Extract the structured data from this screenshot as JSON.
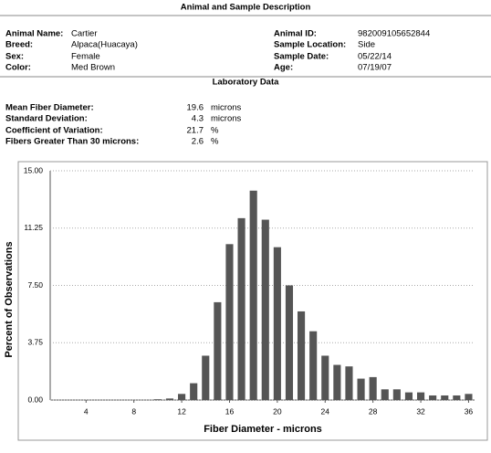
{
  "header": {
    "title": "Animal and Sample Description"
  },
  "animal_left": [
    {
      "label": "Animal Name:",
      "value": "Cartier"
    },
    {
      "label": "Breed:",
      "value": "Alpaca(Huacaya)"
    },
    {
      "label": "Sex:",
      "value": "Female"
    },
    {
      "label": "Color:",
      "value": "Med Brown"
    }
  ],
  "animal_right": [
    {
      "label": "Animal ID:",
      "value": "982009105652844"
    },
    {
      "label": "Sample Location:",
      "value": "Side"
    },
    {
      "label": "Sample Date:",
      "value": "05/22/14"
    },
    {
      "label": "Age:",
      "value": "07/19/07"
    }
  ],
  "lab": {
    "title": "Laboratory Data",
    "rows": [
      {
        "label": "Mean Fiber Diameter:",
        "value": 19.6,
        "unit": "microns"
      },
      {
        "label": "Standard Deviation:",
        "value": 4.3,
        "unit": "microns"
      },
      {
        "label": "Coefficient of Variation:",
        "value": 21.7,
        "unit": "%"
      },
      {
        "label": "Fibers Greater Than 30 microns:",
        "value": 2.6,
        "unit": "%"
      }
    ]
  },
  "chart_data": {
    "type": "bar",
    "xlabel": "Fiber Diameter - microns",
    "ylabel": "Percent of Observations",
    "x": [
      10,
      11,
      12,
      13,
      14,
      15,
      16,
      17,
      18,
      19,
      20,
      21,
      22,
      23,
      24,
      25,
      26,
      27,
      28,
      29,
      30,
      31,
      32,
      33,
      34,
      35,
      36
    ],
    "values": [
      0.05,
      0.1,
      0.4,
      1.1,
      2.9,
      6.4,
      10.2,
      11.9,
      13.7,
      11.8,
      10.0,
      7.5,
      5.8,
      4.5,
      2.9,
      2.3,
      2.2,
      1.4,
      1.5,
      0.7,
      0.7,
      0.5,
      0.5,
      0.3,
      0.3,
      0.3,
      0.4
    ],
    "color": "#555555",
    "xlim": [
      1,
      36.5
    ],
    "ylim": [
      0,
      15
    ],
    "xticks": [
      4,
      8,
      12,
      16,
      20,
      24,
      28,
      32,
      36
    ],
    "yticks": [
      {
        "value": 0,
        "label": "0.00"
      },
      {
        "value": 3.75,
        "label": "3.75"
      },
      {
        "value": 7.5,
        "label": "7.50"
      },
      {
        "value": 11.25,
        "label": "11.25"
      },
      {
        "value": 15,
        "label": "15.00"
      }
    ],
    "grid": true
  }
}
